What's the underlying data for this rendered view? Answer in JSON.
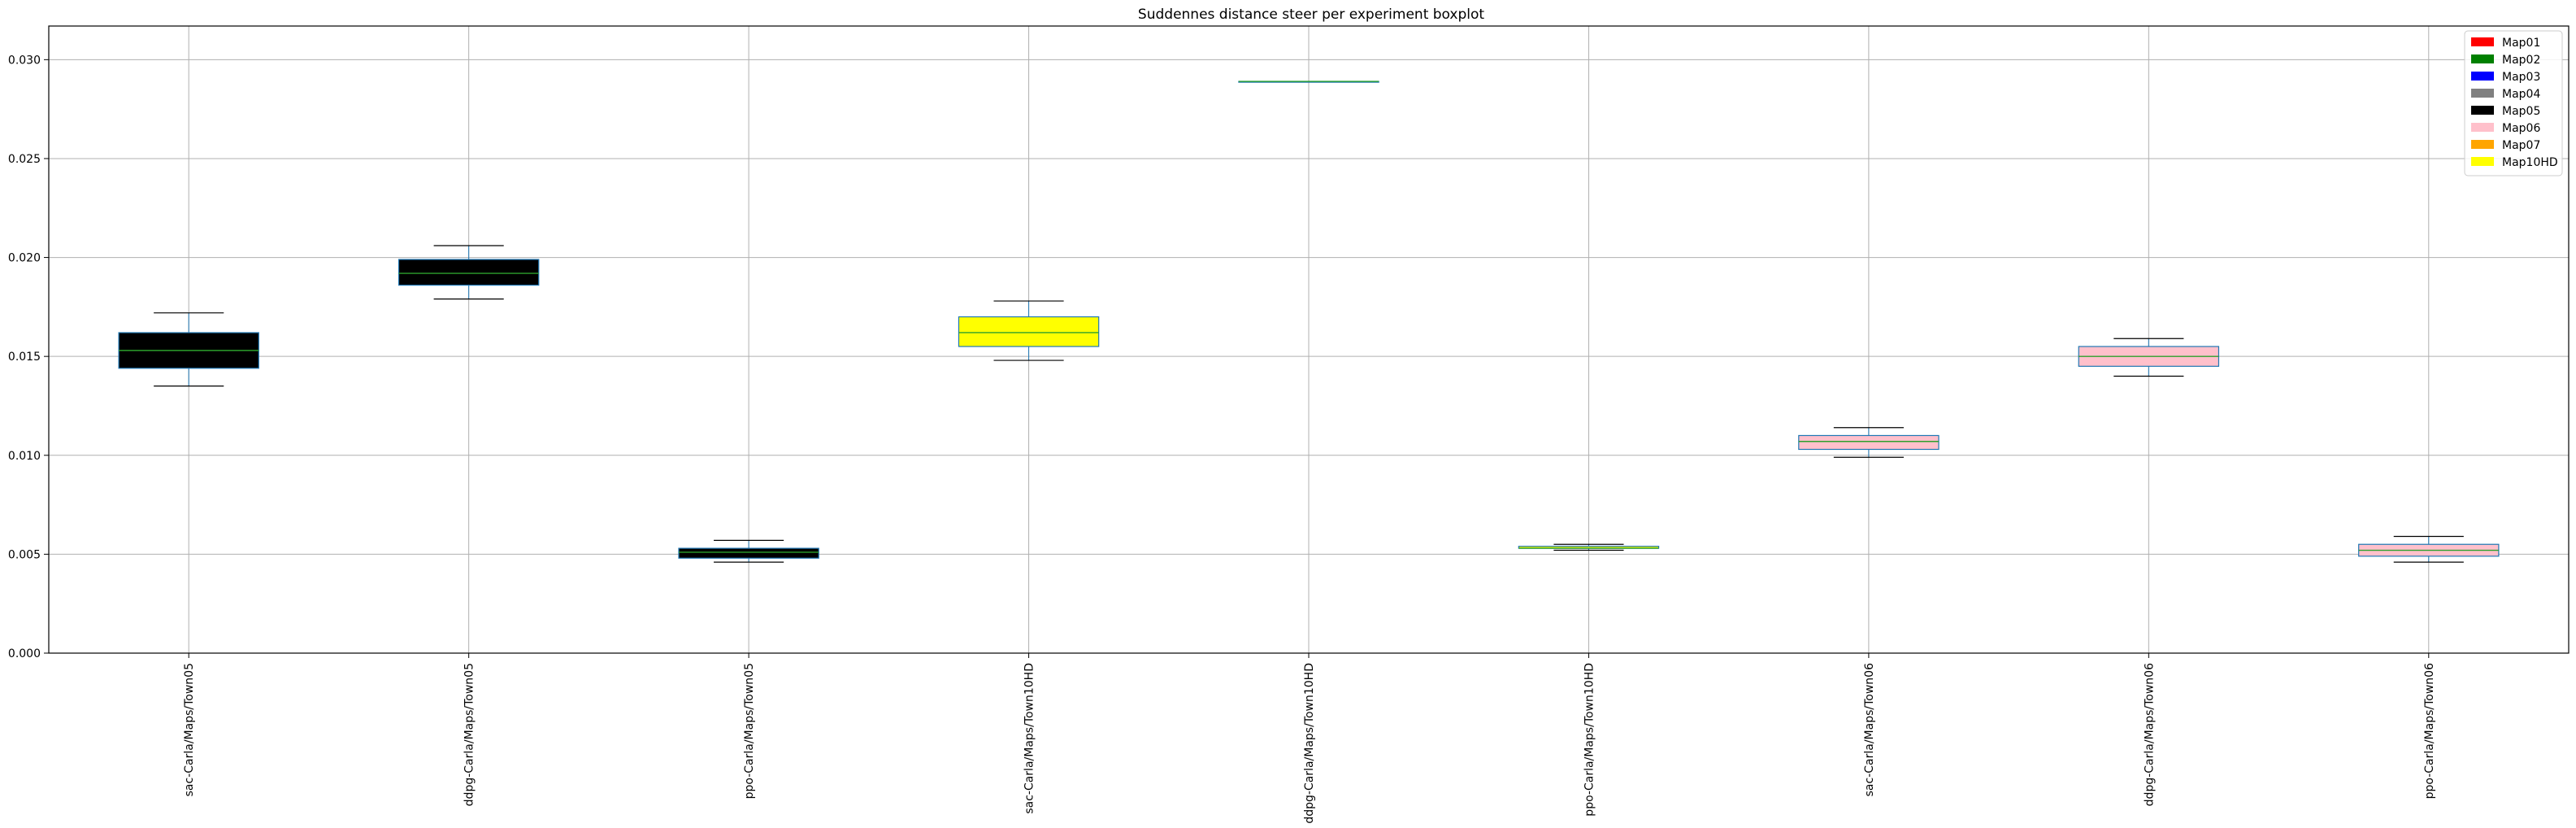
{
  "chart_data": {
    "type": "boxplot",
    "title": "Suddennes distance steer per experiment boxplot",
    "xlabel": "",
    "ylabel": "",
    "ylim": [
      0.0,
      0.0317
    ],
    "yticks": [
      0.0,
      0.005,
      0.01,
      0.015,
      0.02,
      0.025,
      0.03
    ],
    "ytick_labels": [
      "0.000",
      "0.005",
      "0.010",
      "0.015",
      "0.020",
      "0.025",
      "0.030"
    ],
    "grid": true,
    "legend_position": "top-right",
    "legend": [
      {
        "name": "Map01",
        "color": "#ff0000"
      },
      {
        "name": "Map02",
        "color": "#008000"
      },
      {
        "name": "Map03",
        "color": "#0000ff"
      },
      {
        "name": "Map04",
        "color": "#808080"
      },
      {
        "name": "Map05",
        "color": "#000000"
      },
      {
        "name": "Map06",
        "color": "#ffc0cb"
      },
      {
        "name": "Map07",
        "color": "#ffa500"
      },
      {
        "name": "Map10HD",
        "color": "#ffff00"
      }
    ],
    "categories": [
      "sac-Carla/Maps/Town05",
      "ddpg-Carla/Maps/Town05",
      "ppo-Carla/Maps/Town05",
      "sac-Carla/Maps/Town10HD",
      "ddpg-Carla/Maps/Town10HD",
      "ppo-Carla/Maps/Town10HD",
      "sac-Carla/Maps/Town06",
      "ddpg-Carla/Maps/Town06",
      "ppo-Carla/Maps/Town06"
    ],
    "boxes": [
      {
        "category": "sac-Carla/Maps/Town05",
        "whisker_low": 0.0135,
        "q1": 0.0144,
        "median": 0.0153,
        "q3": 0.0162,
        "whisker_high": 0.0172,
        "fill": "#000000",
        "median_color": "#2ca02c"
      },
      {
        "category": "ddpg-Carla/Maps/Town05",
        "whisker_low": 0.0179,
        "q1": 0.0186,
        "median": 0.0192,
        "q3": 0.0199,
        "whisker_high": 0.0206,
        "fill": "#000000",
        "median_color": "#2ca02c"
      },
      {
        "category": "ppo-Carla/Maps/Town05",
        "whisker_low": 0.0046,
        "q1": 0.0048,
        "median": 0.0051,
        "q3": 0.0053,
        "whisker_high": 0.0057,
        "fill": "#000000",
        "median_color": "#2ca02c"
      },
      {
        "category": "sac-Carla/Maps/Town10HD",
        "whisker_low": 0.0148,
        "q1": 0.0155,
        "median": 0.0162,
        "q3": 0.017,
        "whisker_high": 0.0178,
        "fill": "#ffff00",
        "median_color": "#2ca02c"
      },
      {
        "category": "ddpg-Carla/Maps/Town10HD",
        "whisker_low": 0.0289,
        "q1": 0.0289,
        "median": 0.0289,
        "q3": 0.0289,
        "whisker_high": 0.0289,
        "fill": "#ffff00",
        "median_color": "#2ca02c"
      },
      {
        "category": "ppo-Carla/Maps/Town10HD",
        "whisker_low": 0.0052,
        "q1": 0.0053,
        "median": 0.0053,
        "q3": 0.0054,
        "whisker_high": 0.0055,
        "fill": "#ffff00",
        "median_color": "#2ca02c"
      },
      {
        "category": "sac-Carla/Maps/Town06",
        "whisker_low": 0.0099,
        "q1": 0.0103,
        "median": 0.0107,
        "q3": 0.011,
        "whisker_high": 0.0114,
        "fill": "#ffc0cb",
        "median_color": "#2ca02c"
      },
      {
        "category": "ddpg-Carla/Maps/Town06",
        "whisker_low": 0.014,
        "q1": 0.0145,
        "median": 0.015,
        "q3": 0.0155,
        "whisker_high": 0.0159,
        "fill": "#ffc0cb",
        "median_color": "#2ca02c"
      },
      {
        "category": "ppo-Carla/Maps/Town06",
        "whisker_low": 0.0046,
        "q1": 0.0049,
        "median": 0.0052,
        "q3": 0.0055,
        "whisker_high": 0.0059,
        "fill": "#ffc0cb",
        "median_color": "#2ca02c"
      }
    ],
    "box_edge_color": "#1f77b4",
    "whisker_color": "#000000"
  }
}
